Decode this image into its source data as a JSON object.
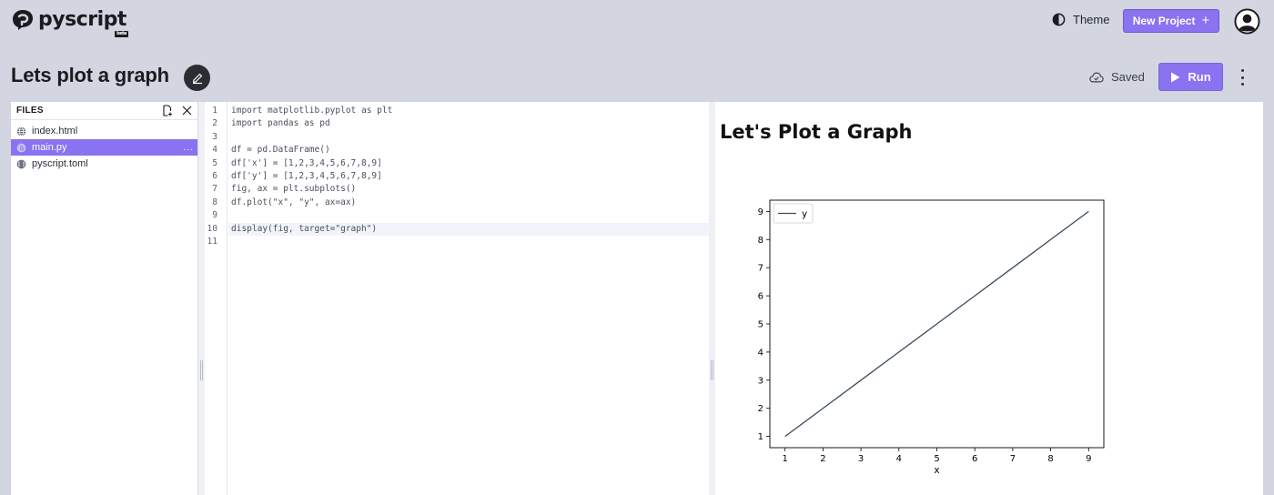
{
  "app": {
    "logo_text": "pyscript",
    "logo_badge": "beta",
    "theme_label": "Theme",
    "new_project_label": "New Project",
    "new_project_icon": "plus-icon"
  },
  "project": {
    "title": "Lets plot a graph",
    "saved_label": "Saved",
    "run_label": "Run"
  },
  "files": {
    "header": "FILES",
    "items": [
      {
        "name": "index.html",
        "icon": "globe-icon",
        "active": false
      },
      {
        "name": "main.py",
        "icon": "python-file-icon",
        "active": true
      },
      {
        "name": "pyscript.toml",
        "icon": "config-file-icon",
        "active": false
      }
    ],
    "active_dots": "..."
  },
  "editor": {
    "lines": [
      "import matplotlib.pyplot as plt",
      "import pandas as pd",
      "",
      "df = pd.DataFrame()",
      "df['x'] = [1,2,3,4,5,6,7,8,9]",
      "df['y'] = [1,2,3,4,5,6,7,8,9]",
      "fig, ax = plt.subplots()",
      "df.plot(\"x\", \"y\", ax=ax)",
      "",
      "display(fig, target=\"graph\")",
      ""
    ],
    "current_line": 10
  },
  "output": {
    "heading": "Let's Plot a Graph"
  },
  "chart_data": {
    "type": "line",
    "x": [
      1,
      2,
      3,
      4,
      5,
      6,
      7,
      8,
      9
    ],
    "series": [
      {
        "name": "y",
        "values": [
          1,
          2,
          3,
          4,
          5,
          6,
          7,
          8,
          9
        ],
        "color": "#3b4a5e"
      }
    ],
    "xlabel": "x",
    "ylabel": "",
    "xlim": [
      0.6,
      9.4
    ],
    "ylim": [
      0.6,
      9.4
    ],
    "xticks": [
      1,
      2,
      3,
      4,
      5,
      6,
      7,
      8,
      9
    ],
    "yticks": [
      1,
      2,
      3,
      4,
      5,
      6,
      7,
      8,
      9
    ],
    "grid": false,
    "legend": "top-left"
  },
  "colors": {
    "accent": "#8a73f0",
    "background": "#d3d6e0"
  }
}
